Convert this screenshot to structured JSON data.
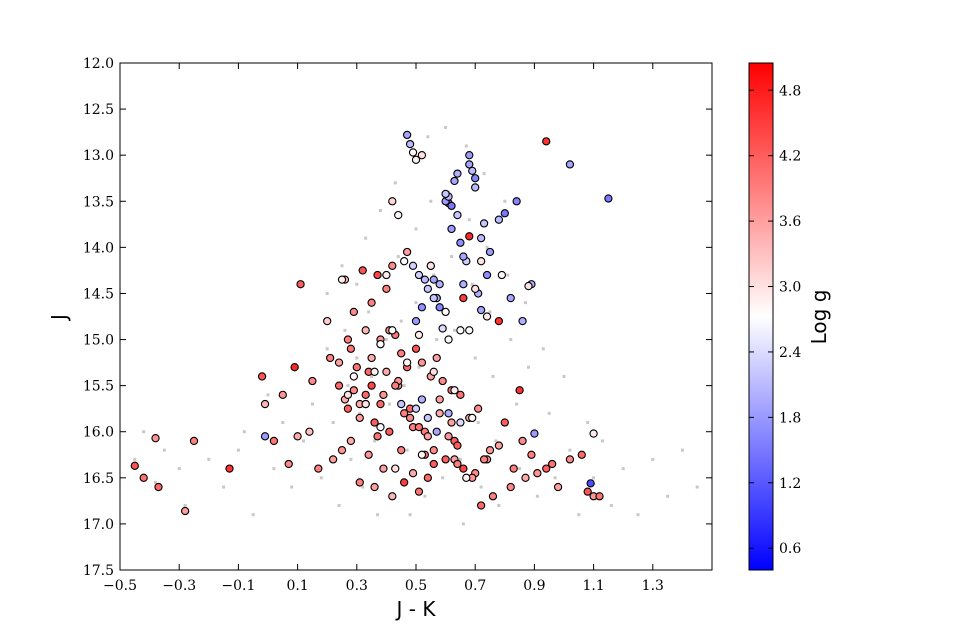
{
  "chart_data": {
    "type": "scatter",
    "title": "",
    "xlabel": "J - K",
    "ylabel": "J",
    "xlim": [
      -0.5,
      1.5
    ],
    "ylim": [
      17.5,
      12.0
    ],
    "y_inverted": true,
    "grid": false,
    "x_ticks": [
      -0.5,
      -0.3,
      -0.1,
      0.1,
      0.3,
      0.5,
      0.7,
      0.9,
      1.1,
      1.3
    ],
    "x_tick_labels": [
      "−0.5",
      "−0.3",
      "−0.1",
      "0.1",
      "0.3",
      "0.5",
      "0.7",
      "0.9",
      "1.1",
      "1.3"
    ],
    "y_ticks": [
      12.0,
      12.5,
      13.0,
      13.5,
      14.0,
      14.5,
      15.0,
      15.5,
      16.0,
      16.5,
      17.0,
      17.5
    ],
    "y_tick_labels": [
      "12.0",
      "12.5",
      "13.0",
      "13.5",
      "14.0",
      "14.5",
      "15.0",
      "15.5",
      "16.0",
      "16.5",
      "17.0",
      "17.5"
    ],
    "colorbar": {
      "label": "Log g",
      "colormap": "bwr",
      "range": [
        0.4,
        5.05
      ],
      "ticks": [
        0.6,
        1.2,
        1.8,
        2.4,
        3.0,
        3.6,
        4.2,
        4.8
      ],
      "tick_labels": [
        "0.6",
        "1.2",
        "1.8",
        "2.4",
        "3.0",
        "3.6",
        "4.2",
        "4.8"
      ],
      "low_color": "#0000ff",
      "mid_color": "#ffffff",
      "high_color": "#ff0000"
    },
    "background_color": "#c8c8c8",
    "background_stars": [
      [
        -0.42,
        16.0
      ],
      [
        -0.45,
        16.3
      ],
      [
        -0.35,
        16.2
      ],
      [
        -0.38,
        16.55
      ],
      [
        -0.3,
        16.4
      ],
      [
        -0.28,
        16.8
      ],
      [
        -0.2,
        16.3
      ],
      [
        -0.15,
        16.6
      ],
      [
        -0.1,
        16.2
      ],
      [
        -0.05,
        16.9
      ],
      [
        -0.08,
        16.0
      ],
      [
        0.0,
        15.6
      ],
      [
        0.02,
        16.4
      ],
      [
        0.05,
        15.9
      ],
      [
        0.08,
        16.6
      ],
      [
        0.1,
        15.3
      ],
      [
        0.12,
        16.1
      ],
      [
        0.15,
        15.7
      ],
      [
        0.18,
        16.5
      ],
      [
        0.2,
        14.5
      ],
      [
        0.2,
        15.1
      ],
      [
        0.22,
        15.9
      ],
      [
        0.24,
        16.8
      ],
      [
        0.25,
        14.2
      ],
      [
        0.26,
        14.9
      ],
      [
        0.27,
        15.5
      ],
      [
        0.28,
        16.3
      ],
      [
        0.3,
        14.4
      ],
      [
        0.3,
        15.2
      ],
      [
        0.31,
        15.8
      ],
      [
        0.32,
        16.6
      ],
      [
        0.33,
        13.9
      ],
      [
        0.34,
        14.7
      ],
      [
        0.35,
        15.4
      ],
      [
        0.36,
        16.1
      ],
      [
        0.37,
        16.9
      ],
      [
        0.38,
        13.6
      ],
      [
        0.39,
        14.3
      ],
      [
        0.4,
        15.0
      ],
      [
        0.41,
        15.7
      ],
      [
        0.42,
        16.4
      ],
      [
        0.43,
        13.3
      ],
      [
        0.44,
        14.1
      ],
      [
        0.45,
        14.8
      ],
      [
        0.46,
        15.5
      ],
      [
        0.47,
        16.2
      ],
      [
        0.48,
        16.9
      ],
      [
        0.49,
        13.0
      ],
      [
        0.5,
        13.8
      ],
      [
        0.5,
        14.6
      ],
      [
        0.51,
        15.3
      ],
      [
        0.52,
        16.0
      ],
      [
        0.53,
        16.7
      ],
      [
        0.54,
        12.8
      ],
      [
        0.55,
        13.5
      ],
      [
        0.56,
        14.3
      ],
      [
        0.57,
        15.0
      ],
      [
        0.58,
        15.8
      ],
      [
        0.59,
        16.5
      ],
      [
        0.6,
        12.7
      ],
      [
        0.61,
        13.4
      ],
      [
        0.62,
        14.1
      ],
      [
        0.63,
        14.9
      ],
      [
        0.64,
        15.6
      ],
      [
        0.65,
        16.3
      ],
      [
        0.66,
        17.0
      ],
      [
        0.67,
        12.9
      ],
      [
        0.68,
        13.7
      ],
      [
        0.69,
        14.4
      ],
      [
        0.7,
        15.2
      ],
      [
        0.71,
        15.9
      ],
      [
        0.72,
        16.6
      ],
      [
        0.73,
        13.2
      ],
      [
        0.74,
        14.0
      ],
      [
        0.75,
        14.7
      ],
      [
        0.76,
        15.4
      ],
      [
        0.77,
        16.1
      ],
      [
        0.78,
        16.8
      ],
      [
        0.8,
        13.5
      ],
      [
        0.81,
        14.3
      ],
      [
        0.82,
        15.0
      ],
      [
        0.84,
        15.7
      ],
      [
        0.85,
        16.4
      ],
      [
        0.87,
        14.6
      ],
      [
        0.88,
        15.3
      ],
      [
        0.9,
        16.0
      ],
      [
        0.91,
        16.7
      ],
      [
        0.93,
        15.1
      ],
      [
        0.95,
        15.8
      ],
      [
        0.97,
        16.5
      ],
      [
        1.0,
        15.4
      ],
      [
        1.02,
        16.2
      ],
      [
        1.05,
        16.9
      ],
      [
        1.08,
        15.9
      ],
      [
        1.1,
        16.5
      ],
      [
        1.13,
        16.1
      ],
      [
        1.16,
        16.8
      ],
      [
        1.2,
        16.4
      ],
      [
        1.25,
        16.9
      ],
      [
        1.3,
        16.3
      ],
      [
        1.35,
        16.7
      ],
      [
        1.4,
        16.2
      ],
      [
        1.45,
        16.6
      ]
    ],
    "series": [
      {
        "x": [
          -0.45,
          -0.42,
          -0.38,
          -0.37,
          -0.28,
          -0.25,
          -0.13,
          -0.02,
          -0.01,
          0.02,
          0.05,
          0.07,
          0.09,
          0.1,
          0.11,
          0.14,
          0.17,
          0.2,
          0.22,
          0.24,
          0.25,
          0.26,
          0.27,
          0.27,
          0.28,
          0.29,
          0.3,
          0.31,
          0.31,
          0.32,
          0.33,
          0.33,
          0.34,
          0.35,
          0.35,
          0.36,
          0.36,
          0.37,
          0.38,
          0.38,
          0.39,
          0.4,
          0.4,
          0.41,
          0.42,
          0.42,
          0.43,
          0.44,
          0.45,
          0.46,
          0.47,
          0.47,
          0.48,
          0.49,
          0.5,
          0.51,
          0.52,
          0.53,
          0.54,
          0.55,
          0.56,
          0.57,
          0.58,
          0.6,
          0.61,
          0.62,
          0.63,
          0.64,
          0.66,
          0.68,
          0.7,
          0.72,
          0.74,
          0.76,
          0.78,
          0.8,
          0.82,
          0.85,
          0.87,
          0.89,
          0.91,
          0.94,
          0.96,
          0.98,
          1.02,
          1.06,
          1.08,
          1.1,
          1.12,
          0.94,
          0.68,
          0.66,
          0.61,
          0.28,
          0.35,
          0.41,
          0.46,
          0.53,
          0.58,
          0.63,
          0.69,
          0.73,
          0.78,
          0.86,
          0.31,
          0.37,
          0.44,
          0.49,
          0.56,
          0.62,
          0.21,
          0.15,
          0.26,
          0.34,
          0.39,
          0.45,
          0.51,
          0.57,
          0.64,
          0.71,
          0.75,
          0.83,
          0.24,
          0.29,
          0.33,
          0.38,
          0.43,
          0.48,
          0.54,
          0.59,
          0.65
        ],
        "y": [
          16.37,
          16.5,
          16.07,
          16.6,
          16.86,
          16.1,
          16.4,
          15.4,
          15.7,
          16.1,
          15.6,
          16.35,
          15.3,
          16.05,
          14.4,
          16.0,
          16.4,
          14.8,
          16.3,
          15.5,
          16.2,
          14.35,
          15.0,
          15.75,
          16.1,
          14.7,
          15.3,
          15.85,
          16.55,
          14.25,
          14.9,
          15.6,
          16.25,
          14.6,
          15.2,
          15.9,
          16.6,
          14.3,
          15.05,
          15.7,
          16.4,
          14.45,
          15.35,
          16.0,
          16.7,
          14.2,
          14.95,
          15.5,
          16.2,
          16.55,
          14.05,
          15.3,
          15.85,
          16.45,
          15.1,
          16.65,
          15.25,
          16.0,
          16.5,
          15.4,
          16.2,
          14.55,
          15.8,
          16.3,
          16.05,
          15.55,
          16.3,
          16.35,
          16.4,
          15.85,
          16.45,
          16.8,
          16.3,
          16.7,
          16.15,
          15.9,
          16.6,
          15.55,
          16.5,
          16.25,
          16.45,
          12.85,
          16.35,
          16.6,
          16.3,
          16.25,
          16.65,
          16.7,
          16.7,
          16.4,
          13.88,
          14.55,
          13.52,
          15.1,
          15.5,
          14.9,
          15.8,
          16.25,
          15.65,
          16.1,
          16.5,
          16.3,
          14.8,
          16.1,
          15.7,
          16.05,
          15.45,
          15.95,
          16.35,
          15.9,
          15.2,
          15.45,
          15.65,
          15.35,
          15.6,
          15.15,
          15.95,
          15.2,
          16.15,
          15.75,
          16.2,
          16.4,
          15.25,
          15.55,
          15.7,
          15.0,
          15.5,
          15.75,
          16.05,
          15.45,
          15.6
        ],
        "logg": [
          4.3,
          4.0,
          3.7,
          4.1,
          3.6,
          3.9,
          4.6,
          4.3,
          3.4,
          4.0,
          3.7,
          3.8,
          4.7,
          3.5,
          4.2,
          3.3,
          3.9,
          3.2,
          3.6,
          4.1,
          3.7,
          3.4,
          3.9,
          4.2,
          3.5,
          3.8,
          4.0,
          3.6,
          3.9,
          4.3,
          3.4,
          4.1,
          3.7,
          3.9,
          3.5,
          4.2,
          3.6,
          4.4,
          3.8,
          4.1,
          3.6,
          3.9,
          3.5,
          4.2,
          3.4,
          3.8,
          4.0,
          3.7,
          3.9,
          4.5,
          3.6,
          4.1,
          3.8,
          3.5,
          4.3,
          4.0,
          3.7,
          3.9,
          4.1,
          3.6,
          3.8,
          4.8,
          3.5,
          4.2,
          3.7,
          4.0,
          3.6,
          3.9,
          4.4,
          3.5,
          3.8,
          4.1,
          3.7,
          3.9,
          3.6,
          4.2,
          3.8,
          4.6,
          3.5,
          3.9,
          3.7,
          4.6,
          4.0,
          3.6,
          3.8,
          4.1,
          4.3,
          3.7,
          4.0,
          4.2,
          4.7,
          4.5,
          4.3,
          4.0,
          4.4,
          3.8,
          3.9,
          4.1,
          3.6,
          4.2,
          3.7,
          3.9,
          4.6,
          3.8,
          3.5,
          4.0,
          3.7,
          3.9,
          4.2,
          3.6,
          3.9,
          3.8,
          3.5,
          4.1,
          3.7,
          3.9,
          4.0,
          3.6,
          4.2,
          3.8,
          3.7,
          3.9,
          3.6,
          3.8,
          4.0,
          3.7,
          3.9,
          4.1,
          3.6,
          3.8,
          4.0
        ]
      },
      {
        "x": [
          0.47,
          0.48,
          0.5,
          0.51,
          0.52,
          0.54,
          0.56,
          0.57,
          0.58,
          0.59,
          0.6,
          0.61,
          0.62,
          0.63,
          0.64,
          0.65,
          0.66,
          0.67,
          0.68,
          0.69,
          0.7,
          0.71,
          0.72,
          0.73,
          0.75,
          0.78,
          0.8,
          0.82,
          0.84,
          0.86,
          0.9,
          1.02,
          1.15,
          0.55,
          0.58,
          0.62,
          0.66,
          0.7,
          0.74,
          0.6,
          0.64,
          0.68,
          0.72,
          0.5,
          0.54,
          0.57,
          0.61,
          0.65,
          0.49,
          0.53,
          0.56,
          -0.01,
          0.89,
          1.09,
          0.45,
          0.52
        ],
        "y": [
          12.78,
          12.88,
          14.8,
          14.3,
          14.65,
          14.45,
          14.35,
          14.55,
          14.65,
          14.88,
          13.5,
          13.45,
          13.55,
          13.28,
          13.65,
          13.95,
          14.4,
          14.15,
          13.0,
          13.17,
          13.25,
          14.5,
          14.68,
          13.74,
          14.05,
          13.7,
          13.63,
          14.55,
          13.5,
          14.8,
          16.02,
          13.1,
          13.47,
          14.2,
          14.4,
          13.8,
          14.1,
          13.35,
          14.3,
          13.42,
          13.2,
          13.1,
          13.9,
          15.75,
          15.85,
          16.0,
          15.8,
          15.9,
          14.2,
          14.35,
          14.55,
          16.05,
          14.4,
          16.56,
          15.7,
          15.65
        ],
        "logg": [
          1.9,
          2.1,
          1.8,
          2.3,
          1.7,
          2.2,
          1.9,
          2.0,
          1.6,
          2.4,
          1.8,
          2.1,
          1.5,
          1.9,
          2.2,
          1.7,
          2.0,
          2.3,
          1.8,
          2.1,
          1.6,
          2.0,
          1.9,
          2.2,
          1.8,
          2.1,
          1.5,
          1.9,
          1.6,
          2.0,
          1.8,
          1.9,
          1.5,
          2.2,
          2.0,
          1.8,
          1.9,
          2.1,
          1.7,
          2.2,
          2.0,
          1.9,
          2.1,
          2.3,
          2.2,
          1.9,
          2.0,
          2.4,
          2.3,
          2.1,
          2.2,
          1.8,
          2.0,
          1.1,
          2.2,
          2.0
        ]
      },
      {
        "x": [
          0.49,
          0.5,
          0.52,
          0.46,
          0.42,
          0.44,
          0.4,
          0.55,
          0.6,
          0.65,
          0.7,
          0.74,
          0.79,
          0.88,
          0.38,
          0.36,
          0.33,
          0.29,
          0.25,
          0.27,
          0.42,
          0.47,
          0.51,
          0.56,
          0.61,
          0.67,
          0.68,
          0.72,
          1.1,
          0.52,
          0.43,
          0.38,
          0.63,
          0.69
        ],
        "y": [
          12.97,
          13.05,
          13.0,
          14.15,
          13.5,
          13.65,
          14.3,
          14.2,
          14.7,
          14.9,
          14.45,
          14.75,
          14.3,
          14.42,
          15.05,
          15.35,
          15.7,
          15.4,
          14.35,
          15.6,
          14.9,
          15.25,
          14.95,
          15.35,
          15.0,
          16.5,
          14.9,
          14.15,
          16.02,
          16.25,
          16.4,
          15.95,
          15.55,
          15.85
        ],
        "logg": [
          2.8,
          2.9,
          3.0,
          2.7,
          3.1,
          2.8,
          2.9,
          3.0,
          2.8,
          2.7,
          3.0,
          2.9,
          2.8,
          3.0,
          2.7,
          2.9,
          3.0,
          2.8,
          2.9,
          3.0,
          2.7,
          2.8,
          2.9,
          3.0,
          2.8,
          2.9,
          2.7,
          3.0,
          2.9,
          2.8,
          3.0,
          2.7,
          2.9,
          2.8
        ]
      }
    ]
  }
}
